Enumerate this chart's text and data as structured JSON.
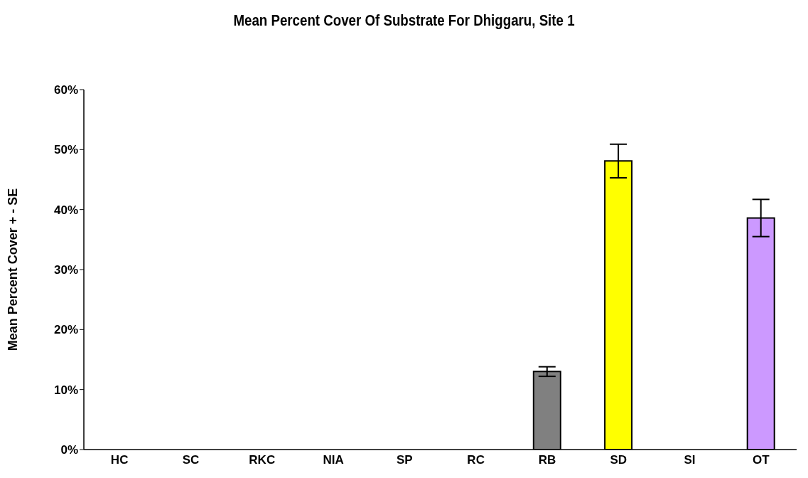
{
  "chart_data": {
    "type": "bar",
    "title": "Mean Percent Cover Of Substrate For Dhiggaru, Site 1",
    "ylabel": "Mean Percent Cover + - SE",
    "categories": [
      "HC",
      "SC",
      "RKC",
      "NIA",
      "SP",
      "RC",
      "RB",
      "SD",
      "SI",
      "OT"
    ],
    "values": [
      0,
      0,
      0,
      0,
      0,
      0,
      13.0,
      48.1,
      0,
      38.6
    ],
    "errors": [
      null,
      null,
      null,
      null,
      null,
      null,
      0.8,
      2.8,
      null,
      3.1
    ],
    "colors": [
      "#808080",
      "#808080",
      "#808080",
      "#808080",
      "#808080",
      "#808080",
      "#808080",
      "#ffff00",
      "#808080",
      "#cc99ff"
    ],
    "ylim": [
      0,
      60
    ],
    "yticks": [
      {
        "value": 0,
        "label": "0%"
      },
      {
        "value": 10,
        "label": "10%"
      },
      {
        "value": 20,
        "label": "20%"
      },
      {
        "value": 30,
        "label": "30%"
      },
      {
        "value": 40,
        "label": "40%"
      },
      {
        "value": 50,
        "label": "50%"
      },
      {
        "value": 60,
        "label": "60%"
      }
    ],
    "grid": false,
    "legend": false
  }
}
